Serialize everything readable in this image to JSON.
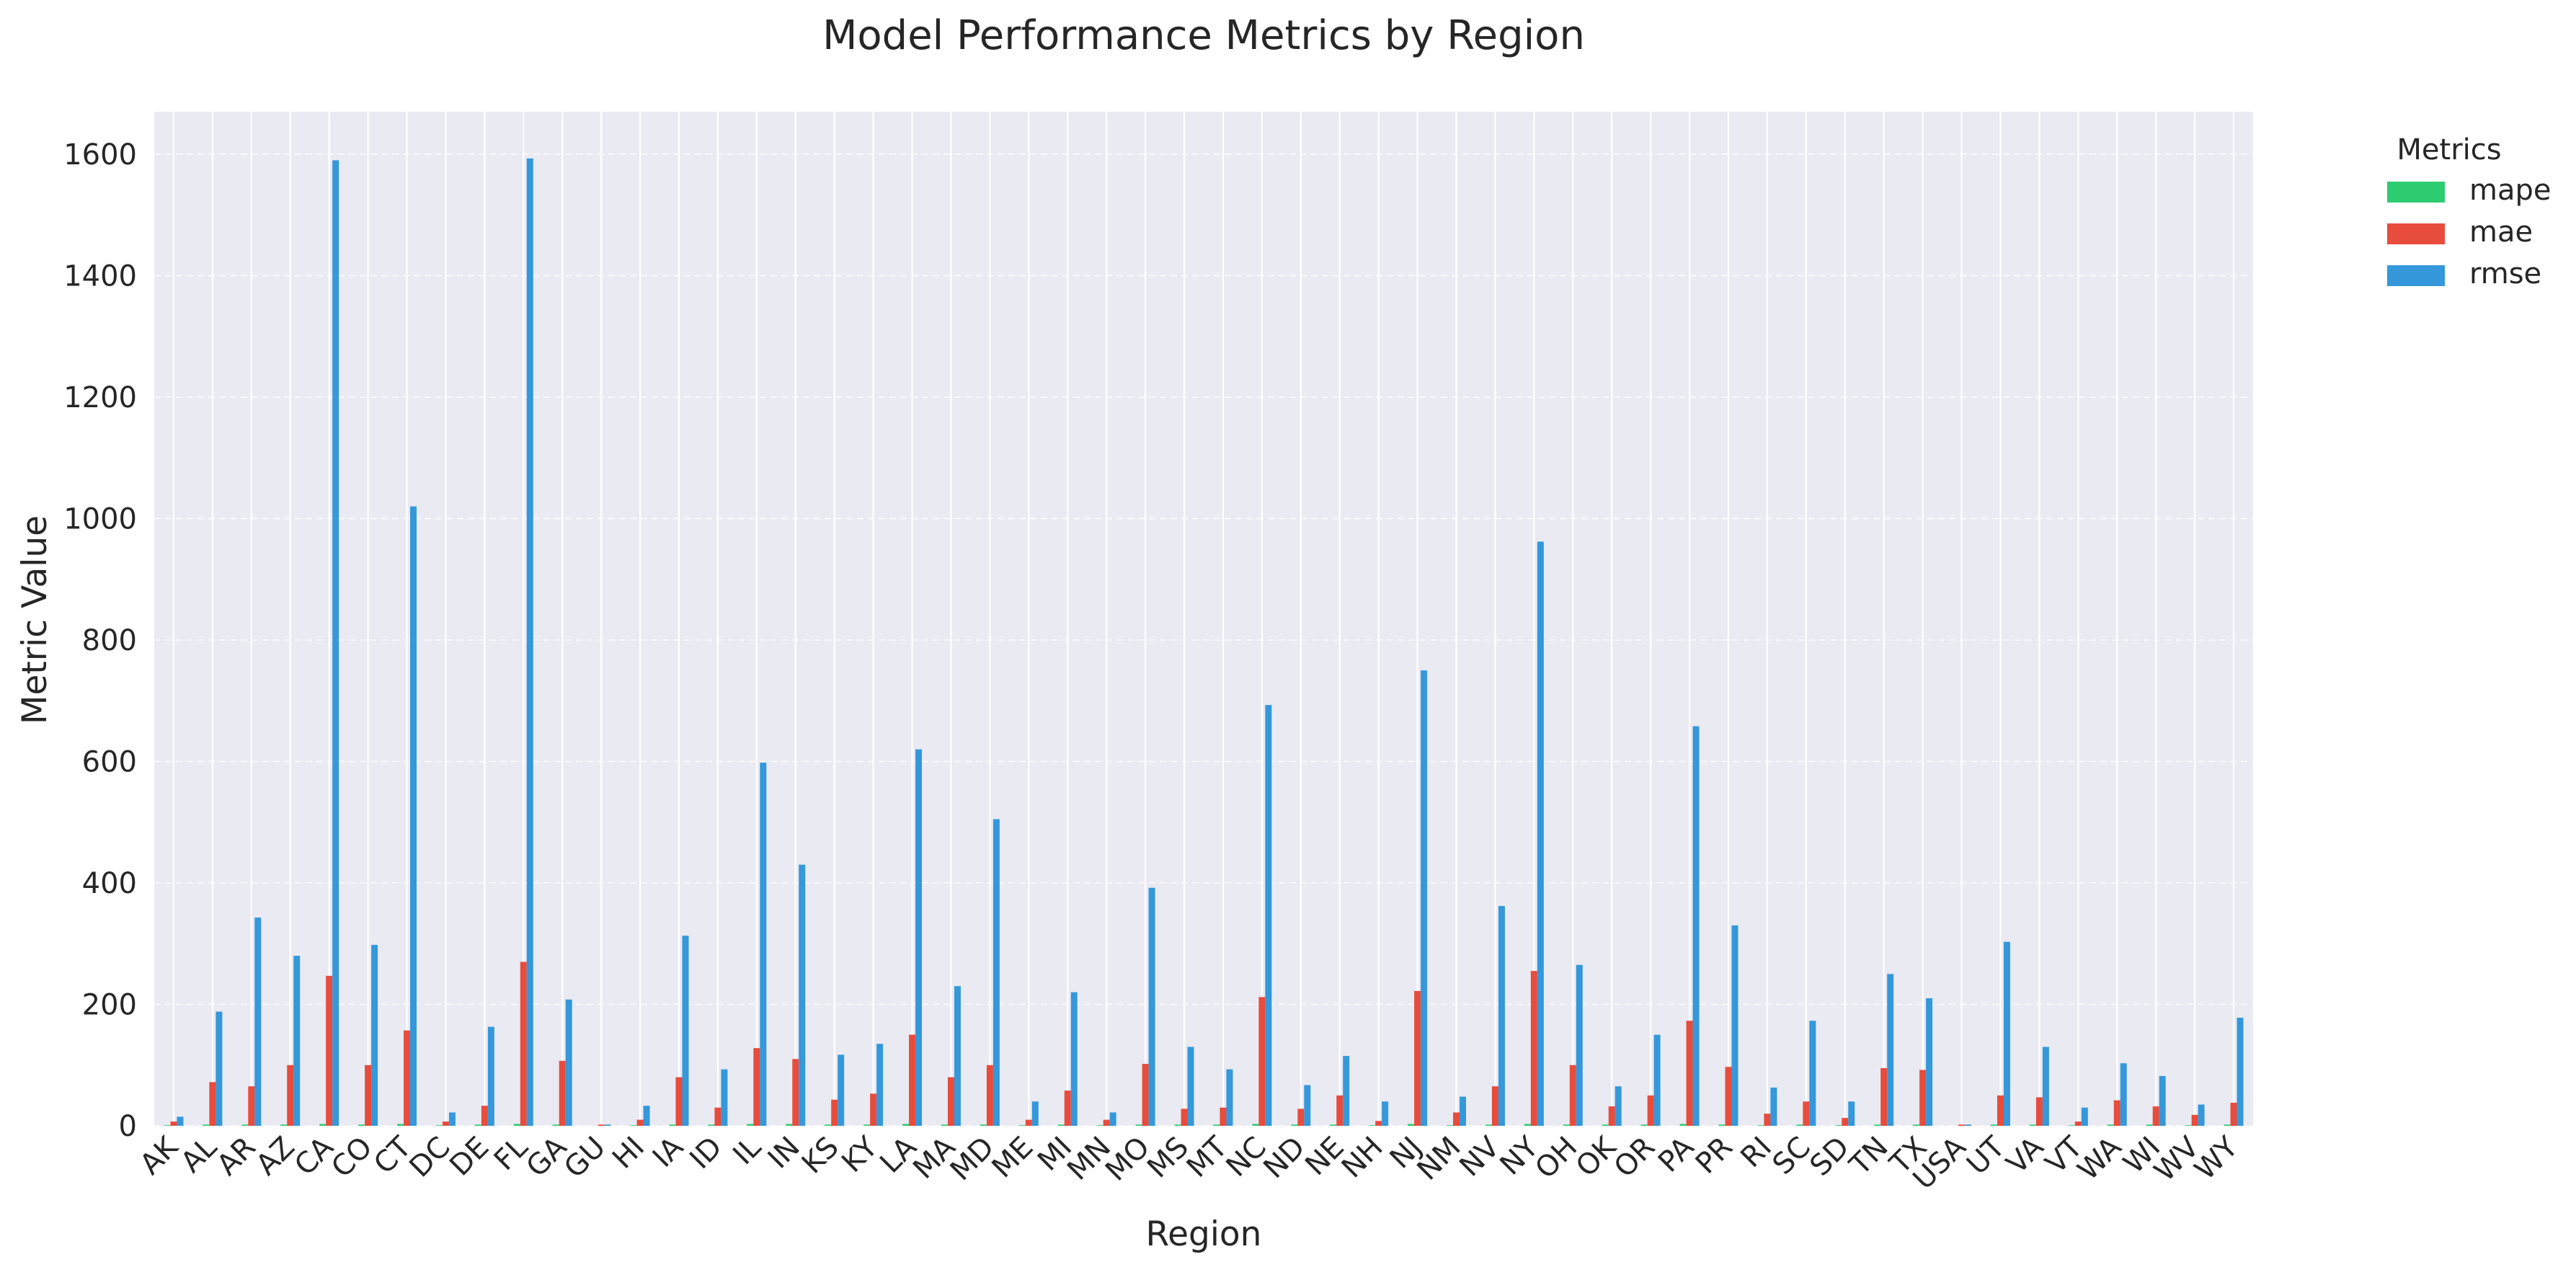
{
  "chart_data": {
    "type": "bar",
    "title": "Model Performance Metrics by Region",
    "xlabel": "Region",
    "ylabel": "Metric Value",
    "ylim": [
      0,
      1670
    ],
    "yticks": [
      0,
      200,
      400,
      600,
      800,
      1000,
      1200,
      1400,
      1600
    ],
    "grid": true,
    "legend": {
      "title": "Metrics",
      "placement": "outside-top-right"
    },
    "categories": [
      "AK",
      "AL",
      "AR",
      "AZ",
      "CA",
      "CO",
      "CT",
      "DC",
      "DE",
      "FL",
      "GA",
      "GU",
      "HI",
      "IA",
      "ID",
      "IL",
      "IN",
      "KS",
      "KY",
      "LA",
      "MA",
      "MD",
      "ME",
      "MI",
      "MN",
      "MO",
      "MS",
      "MT",
      "NC",
      "ND",
      "NE",
      "NH",
      "NJ",
      "NM",
      "NV",
      "NY",
      "OH",
      "OK",
      "OR",
      "PA",
      "PR",
      "RI",
      "SC",
      "SD",
      "TN",
      "TX",
      "USA",
      "UT",
      "VA",
      "VT",
      "WA",
      "WI",
      "WV",
      "WY"
    ],
    "series": [
      {
        "name": "mape",
        "color": "#2ecc71",
        "values": [
          1,
          2,
          2,
          2,
          3,
          2,
          3,
          1,
          2,
          3,
          2,
          0,
          1,
          2,
          2,
          3,
          3,
          2,
          2,
          3,
          2,
          2,
          1,
          2,
          1,
          2,
          2,
          2,
          3,
          2,
          2,
          1,
          3,
          1,
          2,
          3,
          2,
          2,
          2,
          3,
          2,
          1,
          2,
          1,
          2,
          2,
          0,
          2,
          2,
          1,
          2,
          2,
          1,
          2
        ]
      },
      {
        "name": "mae",
        "color": "#e74c3c",
        "values": [
          7,
          72,
          65,
          100,
          247,
          100,
          157,
          7,
          33,
          270,
          107,
          2,
          10,
          80,
          30,
          128,
          110,
          43,
          53,
          150,
          80,
          100,
          10,
          58,
          10,
          102,
          28,
          30,
          212,
          28,
          50,
          8,
          222,
          22,
          65,
          255,
          100,
          32,
          50,
          173,
          97,
          20,
          40,
          13,
          95,
          92,
          2,
          50,
          47,
          7,
          42,
          32,
          18,
          38
        ]
      },
      {
        "name": "rmse",
        "color": "#3498db",
        "values": [
          15,
          188,
          343,
          280,
          1590,
          298,
          1020,
          22,
          163,
          1593,
          208,
          2,
          33,
          313,
          93,
          598,
          430,
          117,
          135,
          620,
          230,
          505,
          40,
          220,
          22,
          392,
          130,
          93,
          693,
          67,
          115,
          40,
          750,
          48,
          362,
          962,
          265,
          65,
          150,
          658,
          330,
          63,
          173,
          40,
          250,
          210,
          2,
          303,
          130,
          30,
          103,
          82,
          35,
          178
        ]
      }
    ]
  }
}
